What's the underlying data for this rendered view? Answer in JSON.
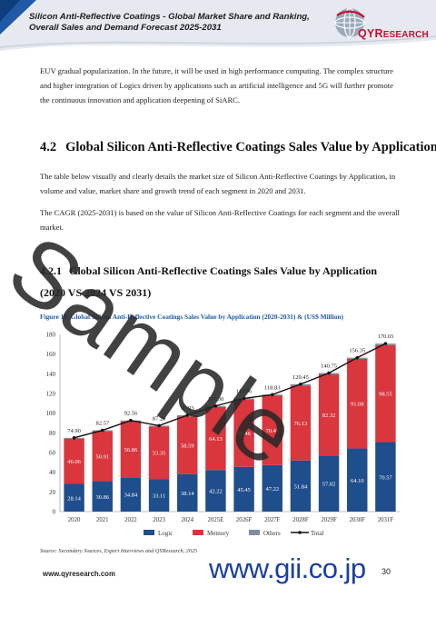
{
  "header": {
    "report_title": "Silicon Anti-Reflective Coatings - Global Market Share and Ranking, Overall Sales and Demand Forecast 2025-2031",
    "logo_text_main": "QYR",
    "logo_text_rest": "ESEARCH"
  },
  "body": {
    "intro_paragraph": "EUV gradual popularization. In the future, it will be used in high performance computing. The complex structure and higher integration of Logics driven by applications such as artificial intelligence and 5G will further promote the continuous innovation and application deepening of SiARC.",
    "section_number": "4.2",
    "section_title": "Global Silicon Anti-Reflective Coatings Sales Value by Application",
    "paragraph_1": "The table below visually and clearly details the market size of Silicon Anti-Reflective Coatings by Application, in volume and value, market share and growth trend of each segment in 2020 and 2031.",
    "paragraph_2": "The CAGR (2025-2031) is based on the value of Silicon Anti-Reflective Coatings for each segment and the overall market.",
    "subsection_number": "4.2.1",
    "subsection_title": "Global Silicon Anti-Reflective Coatings Sales Value by Application (2020 VS 2024 VS 2031)",
    "figure_caption": "Figure 16.   Global Silicon Anti-Reflective Coatings Sales Value by Application (2020-2031) & (US$ Million)",
    "source": "Source: Secondary Sources, Expert Interviews and QYResearch, 2025"
  },
  "footer": {
    "url": "www.qyresearch.com",
    "page_number": "30",
    "watermark": "www.gii.co.jp"
  },
  "overlay": {
    "sample_watermark": "Sample"
  },
  "colors": {
    "logic": "#1f4e8c",
    "memory": "#d9363e",
    "others": "#7f8ea3",
    "total": "#111111",
    "caption": "#1f5aa6",
    "brand_red": "#c8102e"
  },
  "chart_data": {
    "type": "bar",
    "stacked": true,
    "categories": [
      "2020",
      "2021",
      "2022",
      "2023",
      "2024",
      "2025E",
      "2026F",
      "2027F",
      "2028F",
      "2029F",
      "2030F",
      "2031F"
    ],
    "series": [
      {
        "name": "Logic",
        "values": [
          28.14,
          30.86,
          34.84,
          33.11,
          38.14,
          42.22,
          45.45,
          47.22,
          51.84,
          57.02,
          64.1,
          70.57
        ]
      },
      {
        "name": "Memory",
        "values": [
          46.06,
          50.91,
          56.86,
          53.35,
          58.59,
          64.13,
          68.46,
          70.45,
          76.13,
          82.32,
          91.08,
          98.55
        ]
      },
      {
        "name": "Others",
        "values": [
          0.7,
          0.8,
          0.86,
          0.83,
          1.2,
          0.95,
          1.05,
          1.16,
          1.48,
          1.41,
          1.17,
          1.53
        ]
      },
      {
        "name": "Total",
        "type": "line",
        "values": [
          74.9,
          82.57,
          92.56,
          87.29,
          97.93,
          107.3,
          114.96,
          118.83,
          129.45,
          140.75,
          156.35,
          170.65
        ]
      }
    ],
    "ylim": [
      0,
      180
    ],
    "yticks": [
      0,
      20,
      40,
      60,
      80,
      100,
      120,
      140,
      160,
      180
    ],
    "legend": "bottom",
    "grid": false
  }
}
